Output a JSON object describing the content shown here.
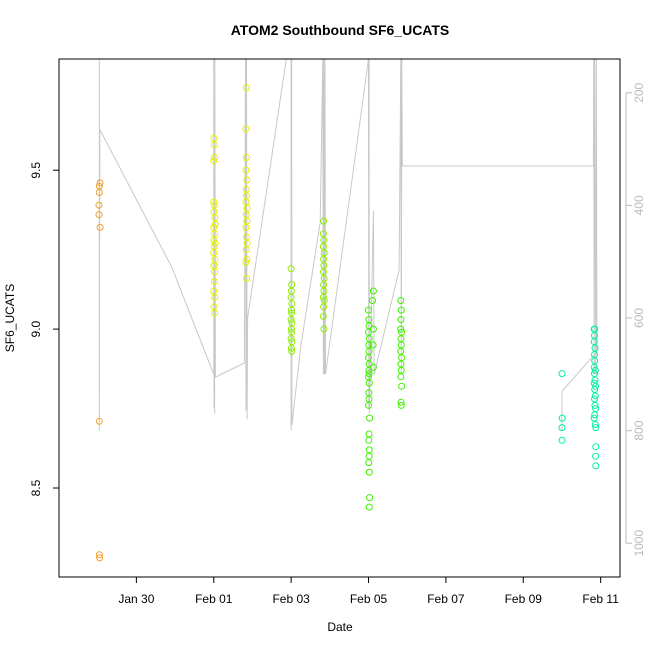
{
  "chart_data": {
    "type": "scatter",
    "title": "ATOM2 Southbound SF6_UCATS",
    "xlabel": "Date",
    "ylabel": "SF6_UCATS",
    "xlim": [
      "2017-01-28T00:00",
      "2017-02-11T12:00"
    ],
    "ylim": [
      8.22,
      9.85
    ],
    "x_ticks": [
      "2017-01-30",
      "2017-02-01",
      "2017-02-03",
      "2017-02-05",
      "2017-02-07",
      "2017-02-09",
      "2017-02-11"
    ],
    "x_tick_labels": [
      "Jan 30",
      "Feb 01",
      "Feb 03",
      "Feb 05",
      "Feb 07",
      "Feb 09",
      "Feb 11"
    ],
    "y_ticks": [
      8.5,
      9.0,
      9.5
    ],
    "y_tick_labels": [
      "8.5",
      "9.0",
      "9.5"
    ],
    "right_axis": {
      "quantity": "pressure",
      "range": [
        1060,
        140
      ],
      "ticks": [
        200,
        400,
        600,
        800,
        1000
      ],
      "tick_labels": [
        "200",
        "400",
        "600",
        "800",
        "1000"
      ],
      "color": "#bbbbbb"
    },
    "grid": false,
    "legend": "none",
    "series": [
      {
        "color": "#f0a030",
        "points": [
          [
            "2017-01-29T01:00",
            9.45
          ],
          [
            "2017-01-29T01:00",
            9.43
          ],
          [
            "2017-01-29T01:30",
            9.46
          ],
          [
            "2017-01-29T00:50",
            9.39
          ],
          [
            "2017-01-29T00:50",
            9.36
          ],
          [
            "2017-01-29T01:30",
            9.32
          ],
          [
            "2017-01-29T01:00",
            8.71
          ],
          [
            "2017-01-29T01:00",
            8.29
          ],
          [
            "2017-01-29T01:10",
            8.28
          ]
        ]
      },
      {
        "color": "#e6f000",
        "points": [
          [
            "2017-02-01T00:10",
            9.6
          ],
          [
            "2017-02-01T00:20",
            9.58
          ],
          [
            "2017-02-01T00:00",
            9.53
          ],
          [
            "2017-02-01T00:30",
            9.54
          ],
          [
            "2017-02-01T00:00",
            9.4
          ],
          [
            "2017-02-01T00:20",
            9.39
          ],
          [
            "2017-02-01T00:10",
            9.37
          ],
          [
            "2017-02-01T00:40",
            9.35
          ],
          [
            "2017-02-01T00:00",
            9.32
          ],
          [
            "2017-02-01T00:30",
            9.3
          ],
          [
            "2017-02-01T00:10",
            9.28
          ],
          [
            "2017-02-01T00:20",
            9.26
          ],
          [
            "2017-02-01T00:00",
            9.24
          ],
          [
            "2017-02-01T00:40",
            9.22
          ],
          [
            "2017-02-01T00:10",
            9.2
          ],
          [
            "2017-02-01T00:30",
            9.18
          ],
          [
            "2017-02-01T00:20",
            9.15
          ],
          [
            "2017-02-01T00:00",
            9.12
          ],
          [
            "2017-02-01T00:40",
            9.1
          ],
          [
            "2017-02-01T00:10",
            9.07
          ],
          [
            "2017-02-01T00:30",
            9.05
          ],
          [
            "2017-02-01T00:20",
            9.2
          ],
          [
            "2017-02-01T00:50",
            9.27
          ],
          [
            "2017-02-01T00:50",
            9.33
          ],
          [
            "2017-02-01T20:10",
            9.76
          ],
          [
            "2017-02-01T20:00",
            9.63
          ],
          [
            "2017-02-01T20:20",
            9.54
          ],
          [
            "2017-02-01T20:00",
            9.5
          ],
          [
            "2017-02-01T20:30",
            9.47
          ],
          [
            "2017-02-01T20:10",
            9.44
          ],
          [
            "2017-02-01T20:20",
            9.42
          ],
          [
            "2017-02-01T20:00",
            9.4
          ],
          [
            "2017-02-01T20:40",
            9.38
          ],
          [
            "2017-02-01T20:10",
            9.36
          ],
          [
            "2017-02-01T20:30",
            9.34
          ],
          [
            "2017-02-01T20:00",
            9.32
          ],
          [
            "2017-02-01T20:20",
            9.29
          ],
          [
            "2017-02-01T20:40",
            9.27
          ],
          [
            "2017-02-01T20:10",
            9.25
          ],
          [
            "2017-02-01T20:30",
            9.22
          ],
          [
            "2017-02-01T20:00",
            9.21
          ],
          [
            "2017-02-01T20:20",
            9.16
          ]
        ]
      },
      {
        "color": "#8cf000",
        "points": [
          [
            "2017-02-03T00:00",
            9.19
          ],
          [
            "2017-02-03T00:20",
            9.14
          ],
          [
            "2017-02-03T00:10",
            9.12
          ],
          [
            "2017-02-03T00:00",
            9.1
          ],
          [
            "2017-02-03T00:30",
            9.08
          ],
          [
            "2017-02-03T00:10",
            9.06
          ],
          [
            "2017-02-03T00:20",
            9.05
          ],
          [
            "2017-02-03T00:00",
            9.03
          ],
          [
            "2017-02-03T00:30",
            9.02
          ],
          [
            "2017-02-03T00:10",
            9.0
          ],
          [
            "2017-02-03T00:20",
            8.99
          ],
          [
            "2017-02-03T00:00",
            8.97
          ],
          [
            "2017-02-03T00:30",
            8.96
          ],
          [
            "2017-02-03T00:10",
            8.94
          ],
          [
            "2017-02-03T00:20",
            8.93
          ],
          [
            "2017-02-03T20:10",
            9.34
          ],
          [
            "2017-02-03T20:00",
            9.3
          ],
          [
            "2017-02-03T20:20",
            9.28
          ],
          [
            "2017-02-03T20:00",
            9.26
          ],
          [
            "2017-02-03T20:30",
            9.24
          ],
          [
            "2017-02-03T20:10",
            9.22
          ],
          [
            "2017-02-03T20:20",
            9.2
          ],
          [
            "2017-02-03T20:00",
            9.18
          ],
          [
            "2017-02-03T20:30",
            9.16
          ],
          [
            "2017-02-03T20:10",
            9.14
          ],
          [
            "2017-02-03T20:20",
            9.12
          ],
          [
            "2017-02-03T20:00",
            9.1
          ],
          [
            "2017-02-03T20:30",
            9.09
          ],
          [
            "2017-02-03T20:10",
            9.07
          ],
          [
            "2017-02-03T20:00",
            9.04
          ],
          [
            "2017-02-03T20:20",
            9.0
          ]
        ]
      },
      {
        "color": "#40f000",
        "points": [
          [
            "2017-02-05T00:00",
            9.06
          ],
          [
            "2017-02-05T00:10",
            9.03
          ],
          [
            "2017-02-05T00:20",
            9.01
          ],
          [
            "2017-02-05T00:00",
            8.99
          ],
          [
            "2017-02-05T00:30",
            8.97
          ],
          [
            "2017-02-05T00:10",
            8.95
          ],
          [
            "2017-02-05T00:20",
            8.93
          ],
          [
            "2017-02-05T00:00",
            8.91
          ],
          [
            "2017-02-05T00:30",
            8.89
          ],
          [
            "2017-02-05T00:10",
            8.87
          ],
          [
            "2017-02-05T00:20",
            8.86
          ],
          [
            "2017-02-05T00:00",
            8.85
          ],
          [
            "2017-02-05T00:30",
            8.83
          ],
          [
            "2017-02-05T00:10",
            8.8
          ],
          [
            "2017-02-05T00:20",
            8.78
          ],
          [
            "2017-02-05T00:00",
            8.76
          ],
          [
            "2017-02-05T00:40",
            8.72
          ],
          [
            "2017-02-05T00:20",
            8.67
          ],
          [
            "2017-02-05T00:10",
            8.65
          ],
          [
            "2017-02-05T00:30",
            8.62
          ],
          [
            "2017-02-05T00:20",
            8.6
          ],
          [
            "2017-02-05T00:10",
            8.58
          ],
          [
            "2017-02-05T00:30",
            8.55
          ],
          [
            "2017-02-05T00:40",
            8.47
          ],
          [
            "2017-02-05T00:30",
            8.44
          ],
          [
            "2017-02-05T03:00",
            9.12
          ],
          [
            "2017-02-05T02:30",
            9.09
          ],
          [
            "2017-02-05T03:00",
            9.0
          ],
          [
            "2017-02-05T02:50",
            8.95
          ],
          [
            "2017-02-05T03:00",
            8.88
          ],
          [
            "2017-02-05T20:00",
            9.09
          ],
          [
            "2017-02-05T20:20",
            9.06
          ],
          [
            "2017-02-05T20:10",
            9.03
          ],
          [
            "2017-02-05T20:00",
            9.0
          ],
          [
            "2017-02-05T20:30",
            8.99
          ],
          [
            "2017-02-05T20:10",
            8.97
          ],
          [
            "2017-02-05T20:20",
            8.95
          ],
          [
            "2017-02-05T20:00",
            8.93
          ],
          [
            "2017-02-05T20:30",
            8.91
          ],
          [
            "2017-02-05T20:10",
            8.89
          ],
          [
            "2017-02-05T20:20",
            8.87
          ],
          [
            "2017-02-05T20:00",
            8.85
          ],
          [
            "2017-02-05T20:30",
            8.82
          ],
          [
            "2017-02-05T20:10",
            8.77
          ],
          [
            "2017-02-05T20:20",
            8.76
          ]
        ]
      },
      {
        "color": "#00f0a0",
        "points": [
          [
            "2017-02-10T00:00",
            8.86
          ],
          [
            "2017-02-10T00:10",
            8.72
          ],
          [
            "2017-02-10T00:00",
            8.69
          ],
          [
            "2017-02-10T00:00",
            8.65
          ],
          [
            "2017-02-10T20:00",
            9.0
          ],
          [
            "2017-02-10T20:20",
            9.0
          ],
          [
            "2017-02-10T20:10",
            8.98
          ],
          [
            "2017-02-10T20:00",
            8.96
          ],
          [
            "2017-02-10T20:30",
            8.94
          ],
          [
            "2017-02-10T20:10",
            8.92
          ],
          [
            "2017-02-10T20:20",
            8.9
          ],
          [
            "2017-02-10T20:00",
            8.88
          ],
          [
            "2017-02-10T20:40",
            8.87
          ],
          [
            "2017-02-10T20:10",
            8.86
          ],
          [
            "2017-02-10T20:30",
            8.84
          ],
          [
            "2017-02-10T20:00",
            8.83
          ],
          [
            "2017-02-10T20:50",
            8.82
          ],
          [
            "2017-02-10T20:20",
            8.81
          ],
          [
            "2017-02-10T20:40",
            8.79
          ],
          [
            "2017-02-10T20:10",
            8.78
          ],
          [
            "2017-02-10T20:30",
            8.76
          ],
          [
            "2017-02-10T20:50",
            8.75
          ],
          [
            "2017-02-10T20:20",
            8.73
          ],
          [
            "2017-02-10T20:00",
            8.72
          ],
          [
            "2017-02-10T20:40",
            8.7
          ],
          [
            "2017-02-10T21:00",
            8.69
          ],
          [
            "2017-02-10T21:00",
            8.63
          ],
          [
            "2017-02-10T20:50",
            8.6
          ],
          [
            "2017-02-10T21:00",
            8.57
          ]
        ]
      }
    ],
    "pressure_track": {
      "color": "#c8c8c8",
      "points": [
        [
          "2017-01-29T01:00",
          140
        ],
        [
          "2017-01-29T01:00",
          800
        ],
        [
          "2017-01-29T01:20",
          265
        ],
        [
          "2017-01-30T22:00",
          510
        ],
        [
          "2017-02-01T00:00",
          700
        ],
        [
          "2017-02-01T00:00",
          140
        ],
        [
          "2017-02-01T00:10",
          760
        ],
        [
          "2017-02-01T00:20",
          140
        ],
        [
          "2017-02-01T00:30",
          770
        ],
        [
          "2017-02-01T00:40",
          140
        ],
        [
          "2017-02-01T01:00",
          705
        ],
        [
          "2017-02-01T19:00",
          680
        ],
        [
          "2017-02-01T19:40",
          140
        ],
        [
          "2017-02-01T20:00",
          765
        ],
        [
          "2017-02-01T20:20",
          140
        ],
        [
          "2017-02-01T20:40",
          780
        ],
        [
          "2017-02-01T21:00",
          600
        ],
        [
          "2017-02-02T21:00",
          140
        ],
        [
          "2017-02-03T00:00",
          140
        ],
        [
          "2017-02-03T00:00",
          800
        ],
        [
          "2017-02-03T00:20",
          140
        ],
        [
          "2017-02-03T00:30",
          790
        ],
        [
          "2017-02-03T06:00",
          650
        ],
        [
          "2017-02-03T18:00",
          430
        ],
        [
          "2017-02-03T19:40",
          140
        ],
        [
          "2017-02-03T20:00",
          700
        ],
        [
          "2017-02-03T20:20",
          140
        ],
        [
          "2017-02-03T20:40",
          700
        ],
        [
          "2017-02-03T21:00",
          140
        ],
        [
          "2017-02-03T21:20",
          700
        ],
        [
          "2017-02-05T00:00",
          140
        ],
        [
          "2017-02-05T00:10",
          760
        ],
        [
          "2017-02-05T00:20",
          140
        ],
        [
          "2017-02-05T00:30",
          770
        ],
        [
          "2017-02-05T03:00",
          410
        ],
        [
          "2017-02-05T03:30",
          700
        ],
        [
          "2017-02-05T19:00",
          515
        ],
        [
          "2017-02-05T20:00",
          140
        ],
        [
          "2017-02-05T20:20",
          700
        ],
        [
          "2017-02-05T20:40",
          140
        ],
        [
          "2017-02-05T21:00",
          330
        ],
        [
          "2017-02-10T19:30",
          330
        ],
        [
          "2017-02-10T19:40",
          140
        ],
        [
          "2017-02-10T20:00",
          700
        ],
        [
          "2017-02-10T20:20",
          140
        ],
        [
          "2017-02-10T21:00",
          700
        ],
        [
          "2017-02-10T21:20",
          140
        ],
        [
          "2017-02-10T21:40",
          660
        ],
        [
          "2017-02-10T00:00",
          730
        ],
        [
          "2017-02-10T00:00",
          800
        ]
      ]
    }
  }
}
